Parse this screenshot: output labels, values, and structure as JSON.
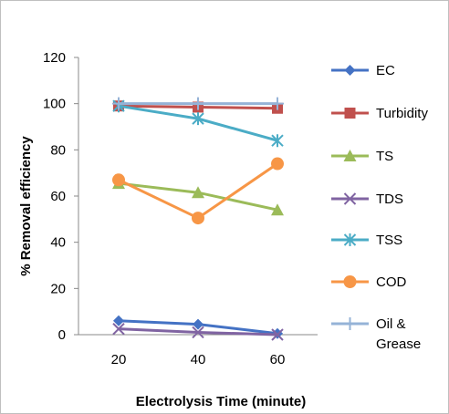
{
  "chart_data": {
    "type": "line",
    "xlabel": "Electrolysis Time (minute)",
    "ylabel": "% Removal efficiency",
    "x": [
      20,
      40,
      60
    ],
    "ylim": [
      0,
      120
    ],
    "yticks": [
      0,
      20,
      40,
      60,
      80,
      100,
      120
    ],
    "grid": false,
    "legend_position": "right",
    "series": [
      {
        "name": "EC",
        "values": [
          6,
          4.5,
          0.5
        ],
        "color": "#4472C4",
        "marker": "diamond"
      },
      {
        "name": "Turbidity",
        "values": [
          99,
          98.5,
          98
        ],
        "color": "#C0504D",
        "marker": "square"
      },
      {
        "name": "TS",
        "values": [
          65.5,
          61.5,
          54
        ],
        "color": "#9BBB59",
        "marker": "triangle"
      },
      {
        "name": "TDS",
        "values": [
          2.5,
          1,
          0
        ],
        "color": "#8064A2",
        "marker": "x"
      },
      {
        "name": "TSS",
        "values": [
          99,
          93.5,
          84
        ],
        "color": "#4BACC6",
        "marker": "star"
      },
      {
        "name": "COD",
        "values": [
          67,
          50.5,
          74
        ],
        "color": "#F79646",
        "marker": "circle"
      },
      {
        "name": "Oil & Grease",
        "values": [
          100,
          100,
          100
        ],
        "color": "#95B3D7",
        "marker": "plus"
      }
    ]
  }
}
